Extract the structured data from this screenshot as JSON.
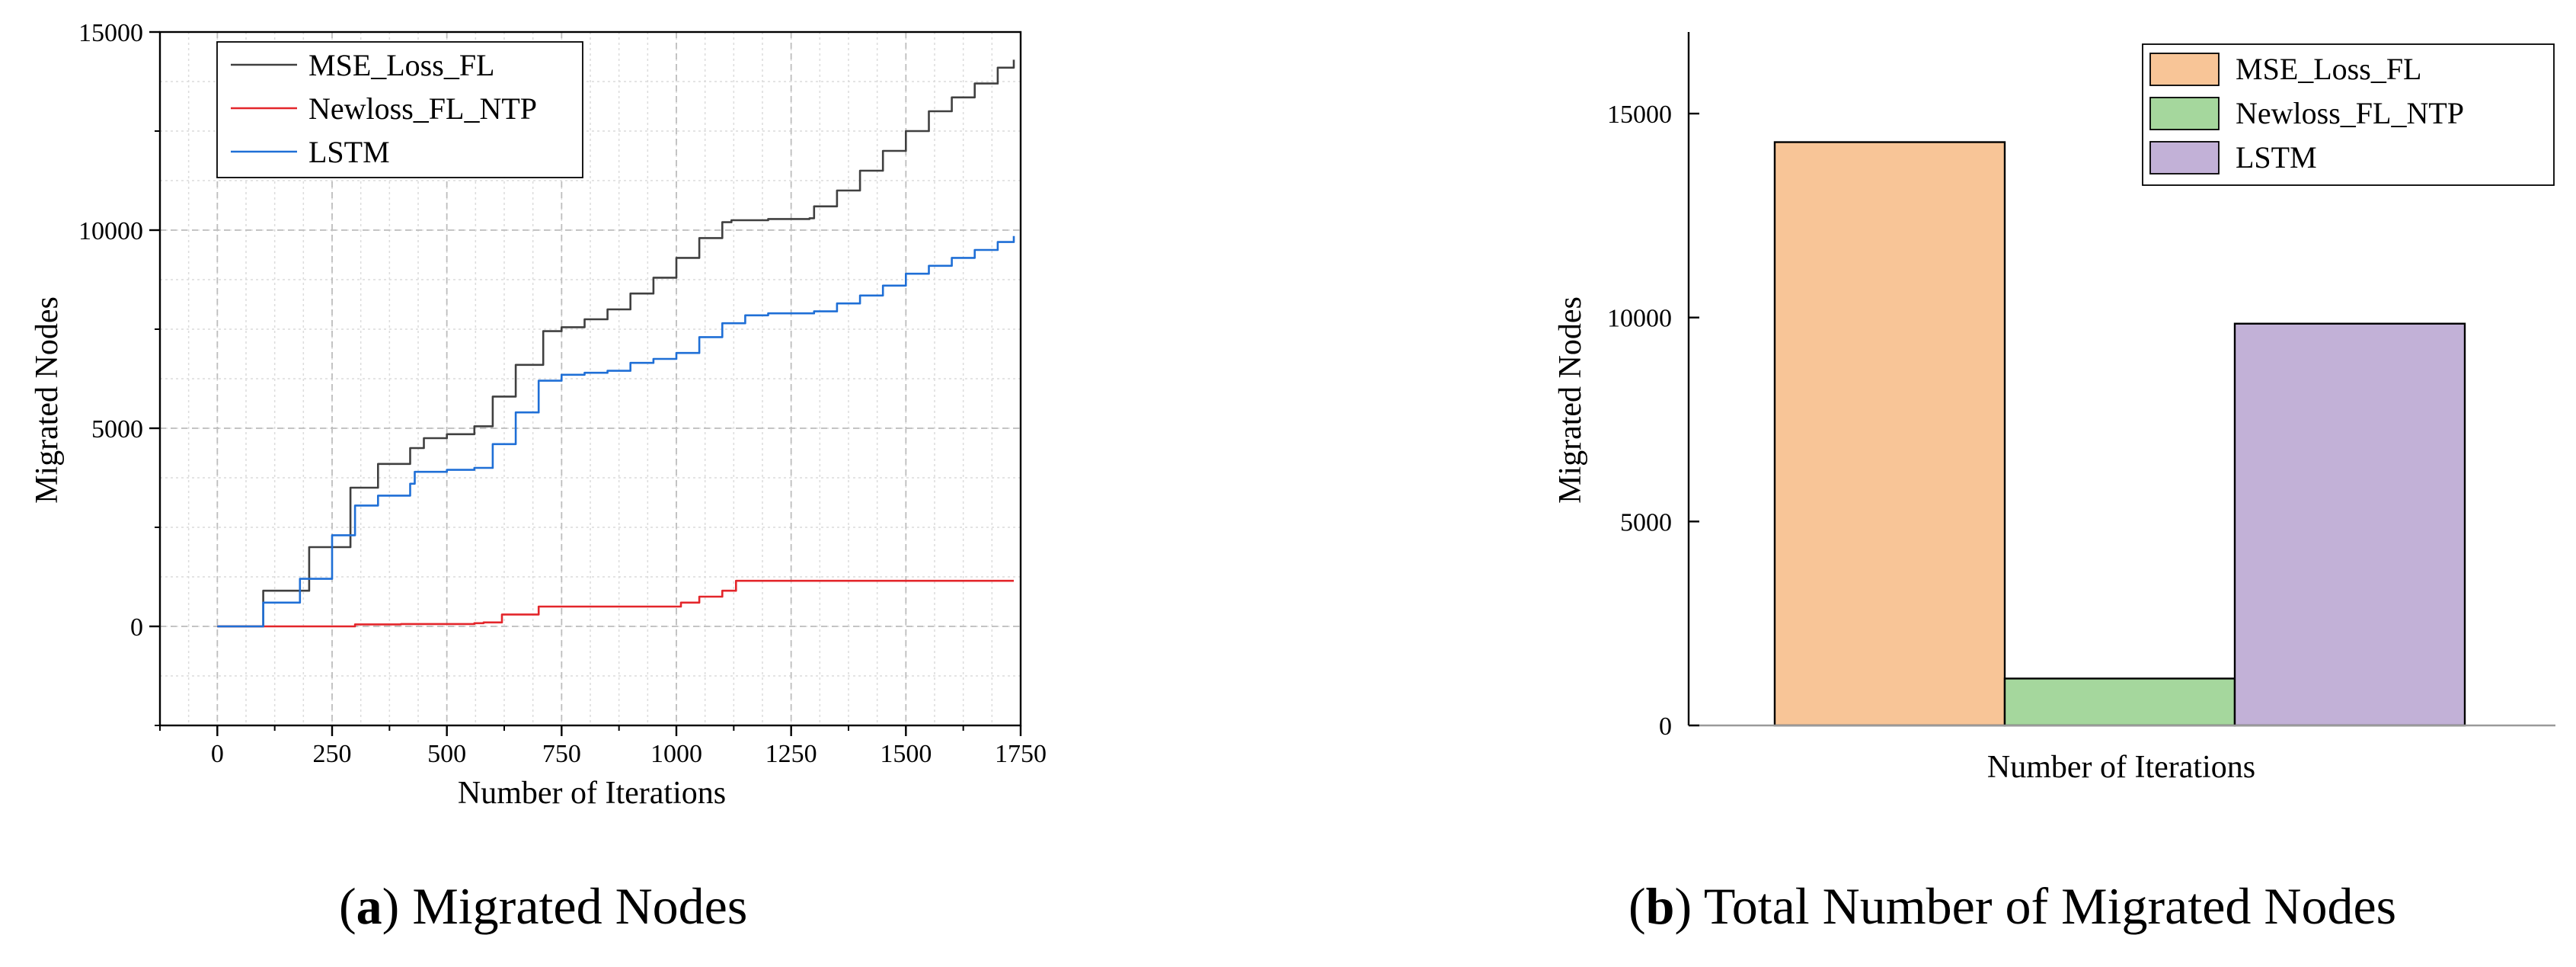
{
  "chart_data": [
    {
      "type": "line",
      "xlabel": "Number of Iterations",
      "ylabel": "Migrated Nodes",
      "xlim": [
        -125,
        1750
      ],
      "ylim": [
        -2500,
        15000
      ],
      "x_ticks": [
        0,
        250,
        500,
        750,
        1000,
        1250,
        1500,
        1750
      ],
      "y_ticks": [
        0,
        5000,
        10000,
        15000
      ],
      "grid": true,
      "legend_position": "top-left",
      "caption_label": "a",
      "caption_text": "Migrated Nodes",
      "series": [
        {
          "name": "MSE_Loss_FL",
          "color": "#404040",
          "x": [
            0,
            100,
            200,
            290,
            350,
            420,
            450,
            500,
            560,
            600,
            650,
            710,
            750,
            800,
            850,
            900,
            950,
            1000,
            1050,
            1100,
            1120,
            1200,
            1290,
            1300,
            1350,
            1400,
            1450,
            1500,
            1550,
            1600,
            1650,
            1700,
            1735
          ],
          "y": [
            0,
            900,
            2000,
            3500,
            4100,
            4500,
            4750,
            4850,
            5050,
            5800,
            6600,
            7450,
            7550,
            7750,
            8000,
            8400,
            8800,
            9300,
            9800,
            10200,
            10250,
            10280,
            10300,
            10600,
            11000,
            11500,
            12000,
            12500,
            13000,
            13350,
            13700,
            14100,
            14300
          ]
        },
        {
          "name": "Newloss_FL_NTP",
          "color": "#e3262b",
          "x": [
            0,
            280,
            300,
            400,
            560,
            580,
            620,
            700,
            750,
            900,
            1000,
            1010,
            1050,
            1100,
            1130,
            1150,
            1300,
            1500,
            1735
          ],
          "y": [
            0,
            0,
            50,
            60,
            80,
            100,
            300,
            500,
            500,
            500,
            500,
            600,
            750,
            900,
            1150,
            1150,
            1150,
            1150,
            1150
          ]
        },
        {
          "name": "LSTM",
          "color": "#1f6fd6",
          "x": [
            0,
            100,
            180,
            250,
            300,
            350,
            420,
            430,
            500,
            560,
            600,
            650,
            700,
            750,
            800,
            850,
            900,
            950,
            1000,
            1050,
            1100,
            1150,
            1200,
            1300,
            1350,
            1400,
            1450,
            1500,
            1550,
            1600,
            1650,
            1700,
            1735
          ],
          "y": [
            0,
            600,
            1200,
            2300,
            3050,
            3300,
            3600,
            3900,
            3950,
            4000,
            4600,
            5400,
            6200,
            6350,
            6400,
            6450,
            6650,
            6750,
            6900,
            7300,
            7650,
            7850,
            7900,
            7950,
            8150,
            8350,
            8600,
            8900,
            9100,
            9300,
            9500,
            9700,
            9850
          ]
        }
      ]
    },
    {
      "type": "bar",
      "xlabel": "Number of Iterations",
      "ylabel": "Migrated Nodes",
      "ylim": [
        0,
        17000
      ],
      "y_ticks": [
        0,
        5000,
        10000,
        15000
      ],
      "grid": false,
      "legend_position": "top-right",
      "caption_label": "b",
      "caption_text": "Total Number of Migrated Nodes",
      "series": [
        {
          "name": "MSE_Loss_FL",
          "value": 14300,
          "color": "#f8c597"
        },
        {
          "name": "Newloss_FL_NTP",
          "value": 1150,
          "color": "#a5d79d"
        },
        {
          "name": "LSTM",
          "value": 9850,
          "color": "#c2b1d7"
        }
      ]
    }
  ]
}
